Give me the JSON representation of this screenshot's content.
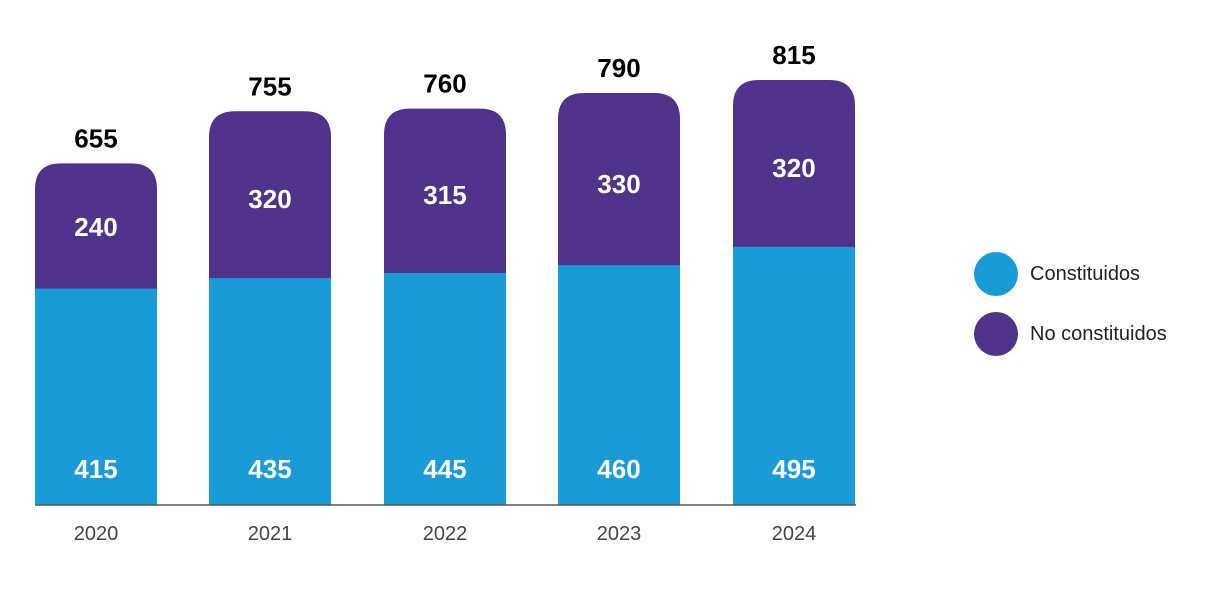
{
  "chart_data": {
    "type": "bar",
    "stacked": true,
    "categories": [
      "2020",
      "2021",
      "2022",
      "2023",
      "2024"
    ],
    "series": [
      {
        "name": "Constituidos",
        "values": [
          415,
          435,
          445,
          460,
          495
        ],
        "color": "#1a9bd7"
      },
      {
        "name": "No constituidos",
        "values": [
          240,
          320,
          315,
          330,
          320
        ],
        "color": "#4f3289"
      }
    ],
    "totals": [
      655,
      755,
      760,
      790,
      815
    ],
    "title": "",
    "xlabel": "",
    "ylabel": "",
    "ylim": [
      0,
      900
    ],
    "grid": false,
    "legend_position": "right"
  }
}
